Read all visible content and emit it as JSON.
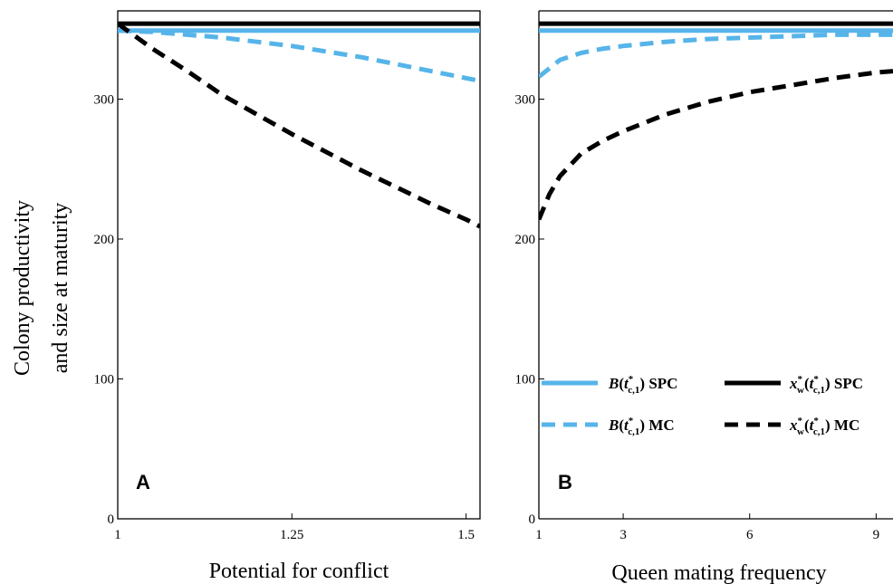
{
  "figure": {
    "ylabel_lines": [
      "Colony productivity",
      "and size at maturity"
    ]
  },
  "chart_data": [
    {
      "type": "line",
      "panel": "A",
      "xlabel": "Potential for conflict",
      "ylabel": "Colony productivity and size at maturity",
      "xlim": [
        1,
        1.52
      ],
      "ylim": [
        0,
        362
      ],
      "xticks": [
        1,
        1.25,
        1.5
      ],
      "xtick_labels": [
        "1",
        "1.25",
        "1.5"
      ],
      "yticks": [
        0,
        100,
        200,
        300
      ],
      "ytick_labels": [
        "0",
        "100",
        "200",
        "300"
      ],
      "grid": false,
      "series": [
        {
          "key": "B_SPC",
          "color": "#56b4e9",
          "style": "solid",
          "x": [
            1,
            1.52
          ],
          "y": [
            349,
            349
          ]
        },
        {
          "key": "xw_SPC",
          "color": "#000000",
          "style": "solid",
          "x": [
            1,
            1.52
          ],
          "y": [
            354,
            354
          ]
        },
        {
          "key": "B_MC",
          "color": "#56b4e9",
          "style": "dashed",
          "x": [
            1,
            1.05,
            1.1,
            1.15,
            1.2,
            1.25,
            1.3,
            1.35,
            1.4,
            1.45,
            1.5,
            1.52
          ],
          "y": [
            349,
            348,
            346,
            344,
            341,
            338,
            334,
            330,
            325,
            320,
            315,
            313
          ]
        },
        {
          "key": "xw_MC",
          "color": "#000000",
          "style": "dashed",
          "x": [
            1,
            1.05,
            1.1,
            1.15,
            1.2,
            1.25,
            1.3,
            1.35,
            1.4,
            1.45,
            1.5,
            1.52
          ],
          "y": [
            354,
            336,
            320,
            303,
            289,
            275,
            262,
            249,
            237,
            225,
            214,
            209
          ]
        }
      ]
    },
    {
      "type": "line",
      "panel": "B",
      "xlabel": "Queen mating frequency",
      "ylabel": "",
      "xlim": [
        1,
        9.4
      ],
      "ylim": [
        0,
        362
      ],
      "xticks": [
        1,
        3,
        6,
        9
      ],
      "xtick_labels": [
        "1",
        "3",
        "6",
        "9"
      ],
      "yticks": [
        0,
        100,
        200,
        300
      ],
      "ytick_labels": [
        "0",
        "100",
        "200",
        "300"
      ],
      "grid": false,
      "series": [
        {
          "key": "B_SPC",
          "color": "#56b4e9",
          "style": "solid",
          "x": [
            1,
            9.4
          ],
          "y": [
            349,
            349
          ]
        },
        {
          "key": "xw_SPC",
          "color": "#000000",
          "style": "solid",
          "x": [
            1,
            9.4
          ],
          "y": [
            354,
            354
          ]
        },
        {
          "key": "B_MC",
          "color": "#56b4e9",
          "style": "dashed",
          "x": [
            1,
            1.5,
            2,
            2.5,
            3,
            4,
            5,
            6,
            7,
            8,
            9,
            9.4
          ],
          "y": [
            316,
            328,
            333,
            336,
            338,
            341,
            343,
            344,
            345,
            346,
            346,
            346
          ]
        },
        {
          "key": "xw_MC",
          "color": "#000000",
          "style": "dashed",
          "x": [
            1,
            1.25,
            1.5,
            2,
            2.5,
            3,
            4,
            5,
            6,
            7,
            8,
            9,
            9.4
          ],
          "y": [
            214,
            232,
            245,
            261,
            270,
            277,
            289,
            298,
            305,
            310,
            315,
            319,
            320
          ]
        }
      ],
      "legend": {
        "placement": "lower-right",
        "entries": [
          {
            "key": "B_SPC",
            "color": "#56b4e9",
            "style": "solid",
            "fn": "B",
            "suffix": " SPC"
          },
          {
            "key": "xw_SPC",
            "color": "#000000",
            "style": "solid",
            "fn": "x",
            "suffix": " SPC"
          },
          {
            "key": "B_MC",
            "color": "#56b4e9",
            "style": "dashed",
            "fn": "B",
            "suffix": " MC"
          },
          {
            "key": "xw_MC",
            "color": "#000000",
            "style": "dashed",
            "fn": "x",
            "suffix": " MC"
          }
        ]
      }
    }
  ]
}
